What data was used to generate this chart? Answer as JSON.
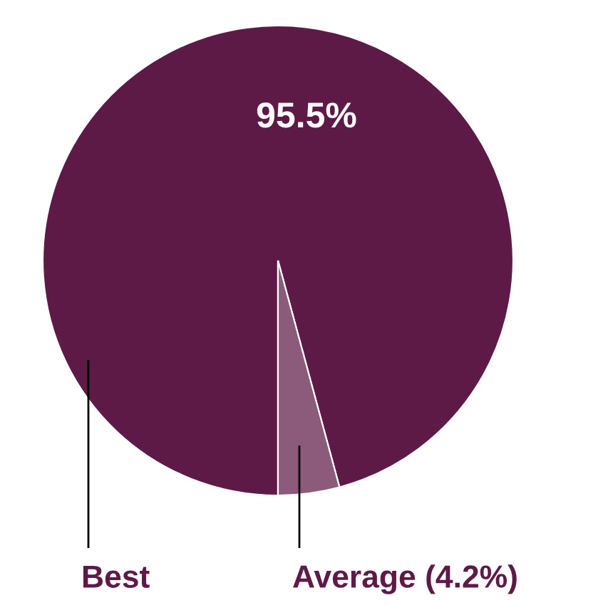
{
  "chart_data": {
    "type": "pie",
    "categories": [
      "Best",
      "Average (4.2%)"
    ],
    "values": [
      95.5,
      4.2
    ],
    "colors": [
      "#5e1a47",
      "#8c5a7b"
    ],
    "value_labels": [
      "95.5%",
      null
    ]
  }
}
